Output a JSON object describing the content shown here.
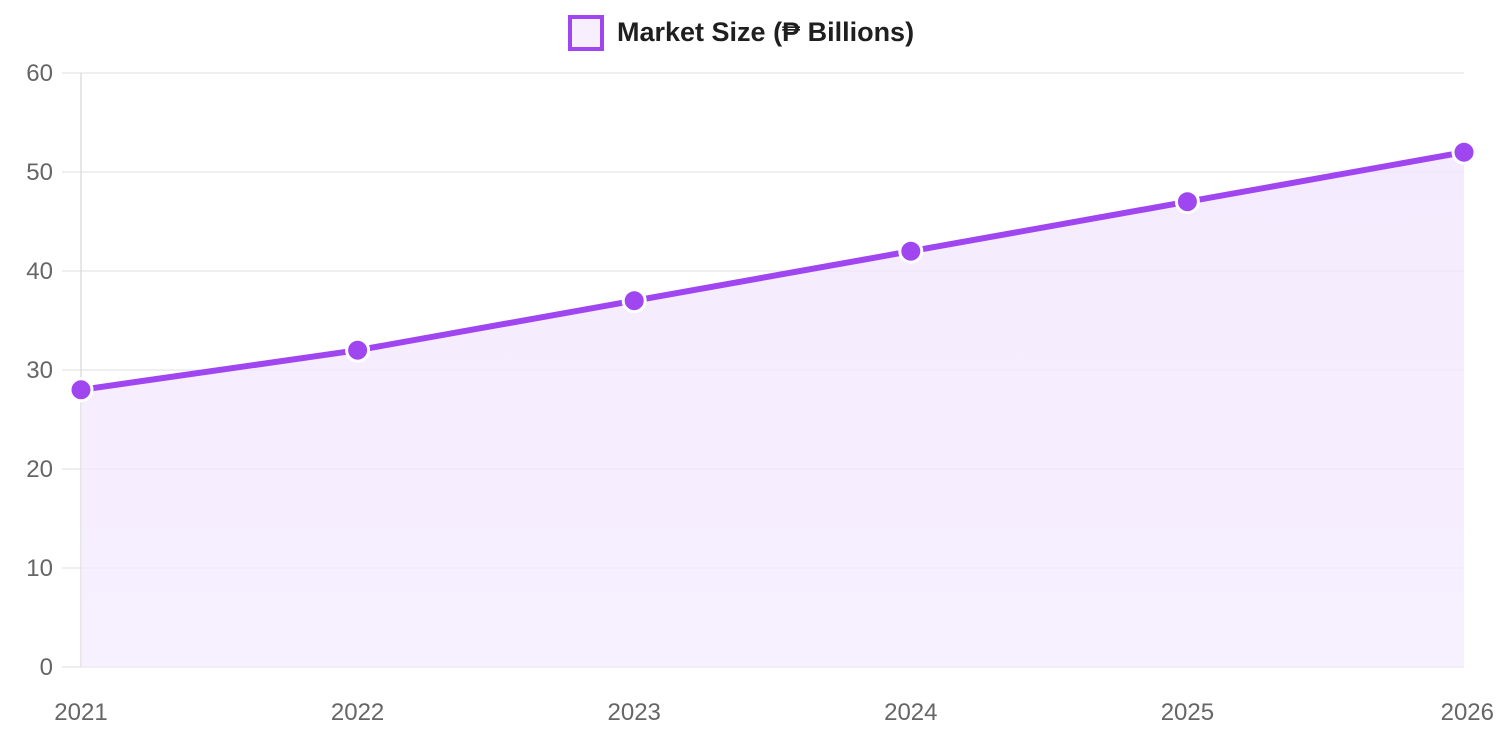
{
  "chart_data": {
    "type": "line",
    "x": [
      "2021",
      "2022",
      "2023",
      "2024",
      "2025",
      "2026"
    ],
    "series": [
      {
        "name": "Market Size (₱ Billions)",
        "values": [
          28,
          32,
          37,
          42,
          47,
          52
        ],
        "color": "#a046f0",
        "fill": "#f1e4fd"
      }
    ],
    "y_ticks": [
      "0",
      "10",
      "20",
      "30",
      "40",
      "50",
      "60"
    ],
    "ylim": [
      0,
      60
    ],
    "grid": true,
    "legend": "top-center",
    "area_fill": true,
    "title": "",
    "xlabel": "",
    "ylabel": ""
  }
}
